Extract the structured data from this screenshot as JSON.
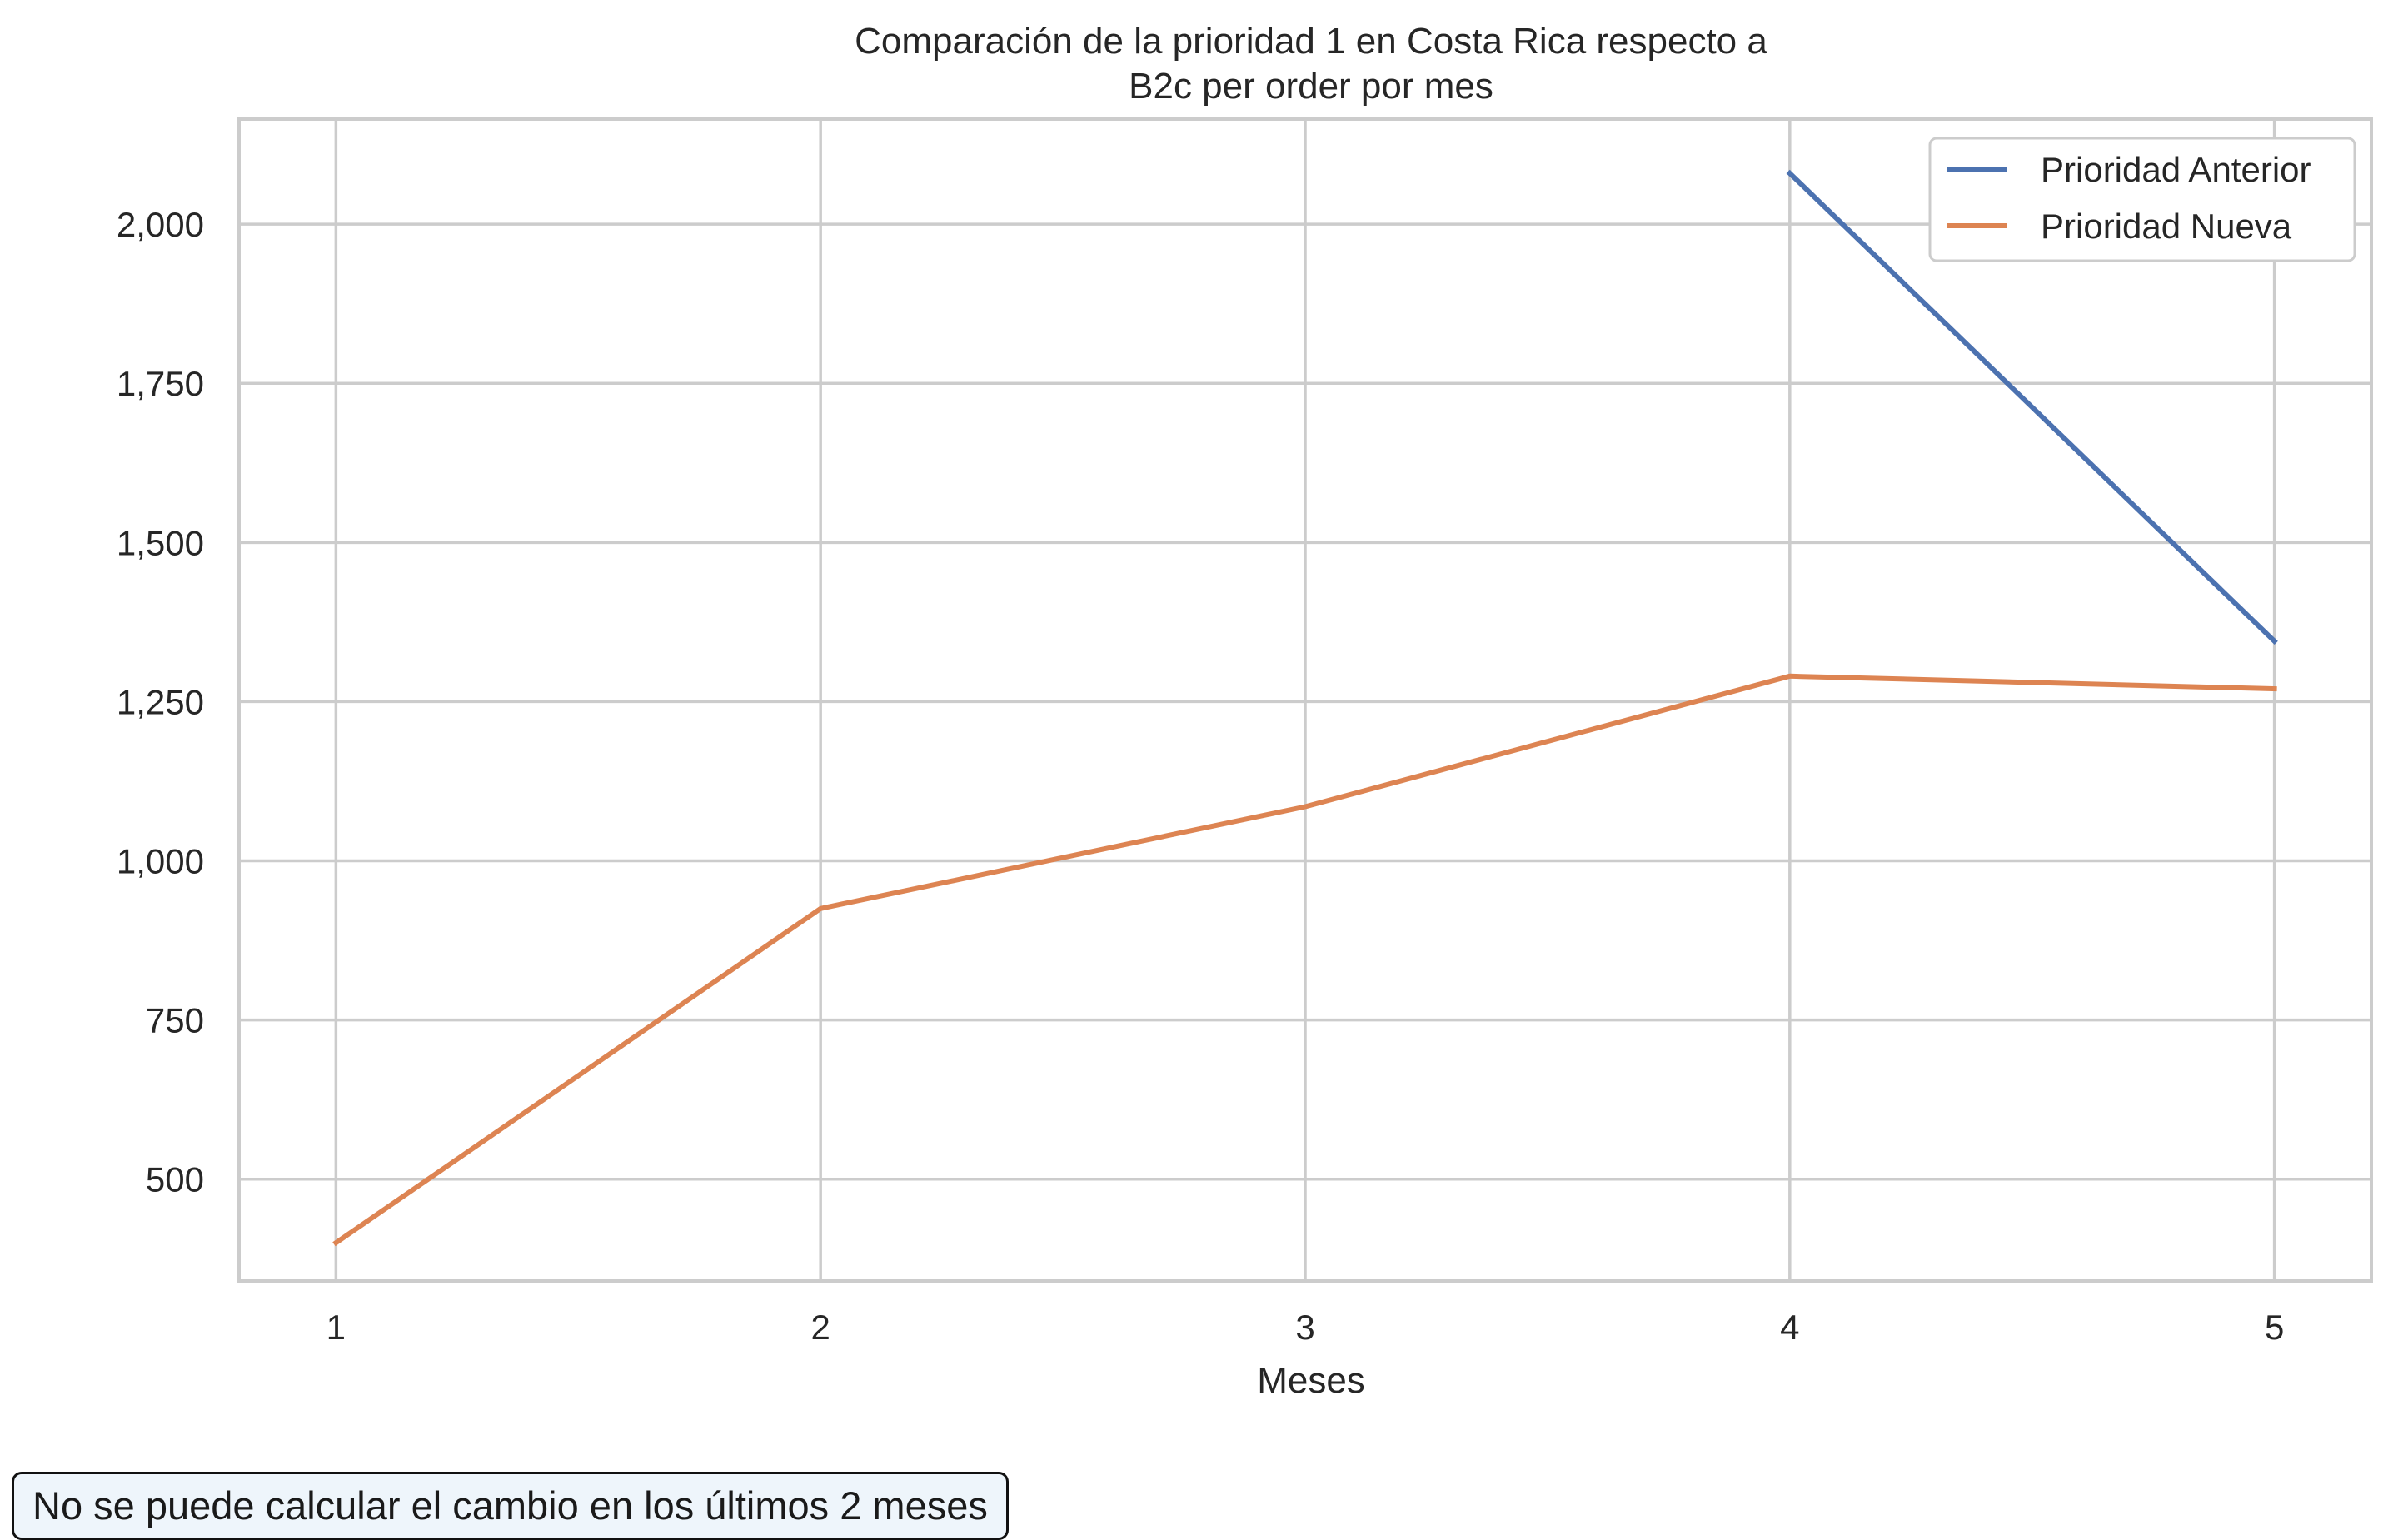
{
  "chart_data": {
    "type": "line",
    "title_line1": "Comparación de la prioridad 1 en Costa Rica respecto a",
    "title_line2": "B2c per order por mes",
    "xlabel": "Meses",
    "ylabel": "",
    "x": [
      1,
      2,
      3,
      4,
      5
    ],
    "x_tick_labels": [
      "1",
      "2",
      "3",
      "4",
      "5"
    ],
    "y_ticks": [
      500,
      750,
      1000,
      1250,
      1500,
      1750,
      2000
    ],
    "y_tick_labels": [
      "500",
      "750",
      "1,000",
      "1,250",
      "1,500",
      "1,750",
      "2,000"
    ],
    "xlim": [
      0.8,
      5.2
    ],
    "ylim": [
      340,
      2165
    ],
    "grid": true,
    "legend_position": "upper-right",
    "series": [
      {
        "name": "Prioridad Anterior",
        "color": "#4c72b0",
        "values": [
          null,
          null,
          null,
          2080,
          1345
        ]
      },
      {
        "name": "Prioridad Nueva",
        "color": "#dd8452",
        "values": [
          400,
          925,
          1085,
          1290,
          1270
        ]
      }
    ]
  },
  "note": "No se puede calcular el cambio en los últimos 2 meses"
}
